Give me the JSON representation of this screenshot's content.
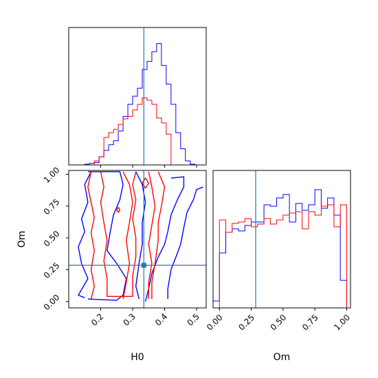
{
  "chart_data": [
    {
      "type": "histogram",
      "panel": "H0 marginal",
      "xlim": [
        0.1,
        0.53
      ],
      "truth": 0.335,
      "ticks": [
        0.2,
        0.3,
        0.4,
        0.5
      ],
      "series": [
        {
          "color": "#0000ff",
          "bin_edges": [
            0.15,
            0.165,
            0.18,
            0.195,
            0.21,
            0.225,
            0.24,
            0.255,
            0.27,
            0.285,
            0.3,
            0.315,
            0.33,
            0.345,
            0.36,
            0.375,
            0.39,
            0.405,
            0.42,
            0.435,
            0.45,
            0.465,
            0.48,
            0.495
          ],
          "counts": [
            1,
            2,
            3,
            10,
            18,
            25,
            30,
            42,
            60,
            75,
            85,
            95,
            118,
            128,
            140,
            150,
            123,
            100,
            75,
            40,
            20,
            5,
            1
          ]
        },
        {
          "color": "#ff0000",
          "bin_edges": [
            0.15,
            0.165,
            0.18,
            0.195,
            0.21,
            0.225,
            0.24,
            0.255,
            0.27,
            0.285,
            0.3,
            0.315,
            0.33,
            0.345,
            0.36,
            0.375,
            0.39,
            0.405,
            0.42,
            0.435,
            0.45,
            0.465,
            0.48,
            0.495
          ],
          "counts": [
            0,
            0,
            5,
            10,
            34,
            40,
            44,
            50,
            57,
            60,
            68,
            75,
            83,
            80,
            75,
            58,
            52,
            38,
            0,
            0,
            0,
            0,
            0
          ]
        }
      ]
    },
    {
      "type": "contour",
      "panel": "H0 vs Om",
      "xlabel": "H0",
      "ylabel": "Om",
      "xlim": [
        0.1,
        0.53
      ],
      "ylim": [
        -0.05,
        1.03
      ],
      "xticks": [
        0.2,
        0.3,
        0.4,
        0.5
      ],
      "yticks": [
        0.0,
        0.25,
        0.5,
        0.75,
        1.0
      ],
      "ytick_labels": [
        "0.00",
        "0.25",
        "0.50",
        "0.75",
        "1.00"
      ],
      "truth": {
        "H0": 0.335,
        "Om": 0.285
      },
      "series": [
        {
          "color": "#0000ff",
          "contours": [
            [
              [
                0.16,
                1.02
              ],
              [
                0.26,
                1.02
              ],
              [
                0.27,
                0.92
              ],
              [
                0.26,
                0.8
              ],
              [
                0.24,
                0.68
              ],
              [
                0.23,
                0.55
              ],
              [
                0.22,
                0.4
              ],
              [
                0.25,
                0.3
              ],
              [
                0.28,
                0.18
              ],
              [
                0.27,
                0.05
              ],
              [
                0.25,
                0.01
              ],
              [
                0.16,
                0.02
              ]
            ],
            [
              [
                0.17,
                1.02
              ],
              [
                0.15,
                0.92
              ],
              [
                0.16,
                0.78
              ],
              [
                0.14,
                0.65
              ],
              [
                0.15,
                0.55
              ],
              [
                0.13,
                0.43
              ],
              [
                0.14,
                0.3
              ],
              [
                0.16,
                0.18
              ],
              [
                0.13,
                0.05
              ],
              [
                0.15,
                0.03
              ]
            ],
            [
              [
                0.31,
                1.02
              ],
              [
                0.33,
                0.92
              ],
              [
                0.34,
                0.78
              ],
              [
                0.33,
                0.62
              ],
              [
                0.33,
                0.45
              ],
              [
                0.32,
                0.3
              ],
              [
                0.31,
                0.12
              ],
              [
                0.32,
                0.02
              ]
            ],
            [
              [
                0.42,
                0.97
              ],
              [
                0.46,
                0.98
              ],
              [
                0.46,
                0.9
              ],
              [
                0.44,
                0.8
              ],
              [
                0.42,
                0.68
              ],
              [
                0.41,
                0.55
              ],
              [
                0.4,
                0.45
              ],
              [
                0.38,
                0.35
              ],
              [
                0.36,
                0.22
              ],
              [
                0.35,
                0.1
              ],
              [
                0.34,
                0.0
              ]
            ],
            [
              [
                0.52,
                0.9
              ],
              [
                0.5,
                0.88
              ],
              [
                0.49,
                0.8
              ],
              [
                0.47,
                0.7
              ],
              [
                0.46,
                0.58
              ],
              [
                0.45,
                0.45
              ],
              [
                0.44,
                0.38
              ],
              [
                0.42,
                0.25
              ],
              [
                0.41,
                0.1
              ],
              [
                0.41,
                0.02
              ]
            ]
          ]
        },
        {
          "color": "#ff0000",
          "contours": [
            [
              [
                0.17,
                1.02
              ],
              [
                0.16,
                0.9
              ],
              [
                0.17,
                0.78
              ],
              [
                0.18,
                0.66
              ],
              [
                0.17,
                0.54
              ],
              [
                0.18,
                0.4
              ],
              [
                0.17,
                0.25
              ],
              [
                0.18,
                0.12
              ],
              [
                0.17,
                0.02
              ]
            ],
            [
              [
                0.27,
                1.02
              ],
              [
                0.29,
                0.92
              ],
              [
                0.3,
                0.78
              ],
              [
                0.29,
                0.62
              ],
              [
                0.28,
                0.48
              ],
              [
                0.29,
                0.3
              ],
              [
                0.28,
                0.15
              ],
              [
                0.27,
                0.02
              ]
            ],
            [
              [
                0.35,
                1.02
              ],
              [
                0.36,
                0.9
              ],
              [
                0.37,
                0.75
              ],
              [
                0.36,
                0.6
              ],
              [
                0.35,
                0.45
              ],
              [
                0.36,
                0.3
              ],
              [
                0.35,
                0.15
              ],
              [
                0.35,
                0.02
              ]
            ],
            [
              [
                0.38,
                1.02
              ],
              [
                0.4,
                0.9
              ],
              [
                0.39,
                0.75
              ],
              [
                0.38,
                0.62
              ],
              [
                0.38,
                0.48
              ],
              [
                0.37,
                0.3
              ],
              [
                0.36,
                0.15
              ],
              [
                0.36,
                0.02
              ]
            ],
            [
              [
                0.2,
                1.02
              ],
              [
                0.21,
                0.9
              ],
              [
                0.2,
                0.78
              ],
              [
                0.21,
                0.62
              ],
              [
                0.22,
                0.48
              ],
              [
                0.21,
                0.32
              ],
              [
                0.22,
                0.18
              ],
              [
                0.22,
                0.04
              ],
              [
                0.3,
                0.04
              ],
              [
                0.3,
                0.2
              ],
              [
                0.31,
                0.35
              ],
              [
                0.31,
                0.5
              ],
              [
                0.3,
                0.65
              ],
              [
                0.31,
                0.8
              ],
              [
                0.3,
                0.92
              ],
              [
                0.31,
                1.02
              ]
            ],
            [
              [
                0.25,
                0.72
              ],
              [
                0.255,
                0.74
              ],
              [
                0.26,
                0.72
              ],
              [
                0.255,
                0.7
              ],
              [
                0.25,
                0.72
              ]
            ],
            [
              [
                0.33,
                0.93
              ],
              [
                0.34,
                0.97
              ],
              [
                0.35,
                0.93
              ],
              [
                0.34,
                0.89
              ],
              [
                0.33,
                0.93
              ]
            ]
          ]
        }
      ]
    },
    {
      "type": "histogram",
      "panel": "Om marginal",
      "xlabel": "Om",
      "xlim": [
        -0.05,
        1.03
      ],
      "truth": 0.285,
      "ticks": [
        0.0,
        0.25,
        0.5,
        0.75,
        1.0
      ],
      "tick_labels": [
        "0.00",
        "0.25",
        "0.50",
        "0.75",
        "1.00"
      ],
      "series": [
        {
          "color": "#0000ff",
          "bin_edges": [
            -0.05,
            0.0,
            0.05,
            0.1,
            0.15,
            0.2,
            0.25,
            0.3,
            0.35,
            0.4,
            0.45,
            0.5,
            0.55,
            0.6,
            0.65,
            0.7,
            0.75,
            0.8,
            0.85,
            0.9,
            0.95,
            1.0
          ],
          "counts": [
            10,
            80,
            110,
            115,
            112,
            120,
            125,
            125,
            150,
            148,
            160,
            165,
            125,
            152,
            142,
            150,
            172,
            145,
            160,
            135,
            40
          ]
        },
        {
          "color": "#ff0000",
          "bin_edges": [
            -0.05,
            0.0,
            0.05,
            0.1,
            0.15,
            0.2,
            0.25,
            0.3,
            0.35,
            0.4,
            0.45,
            0.5,
            0.55,
            0.6,
            0.65,
            0.7,
            0.75,
            0.8,
            0.85,
            0.9,
            0.95,
            1.0
          ],
          "counts": [
            0,
            128,
            110,
            123,
            125,
            130,
            118,
            122,
            130,
            122,
            128,
            135,
            138,
            140,
            115,
            140,
            135,
            148,
            150,
            118,
            150
          ]
        }
      ]
    }
  ]
}
